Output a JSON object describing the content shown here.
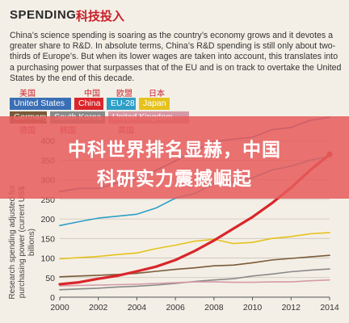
{
  "header": {
    "title_en": "SPENDING",
    "title_zh": "科技投入"
  },
  "intro": "China’s science spending is soaring as the country’s economy grows and it devotes a greater share to R&D. In absolute terms, China’s R&D spending is still only about two-thirds of Europe’s. But when its lower wages are taken into account, this translates into a purchasing power that surpasses that of the EU and is on track to overtake the United States by the end of this decade.",
  "banner": {
    "line1": "中科世界排名显赫，中国",
    "line2": "科研实力震撼崛起"
  },
  "legend": [
    {
      "zh": "美国",
      "label": "United States",
      "color": "#3a6fb5"
    },
    {
      "zh": "中国",
      "label": "China",
      "color": "#d9262b"
    },
    {
      "zh": "欧盟",
      "label": "EU-28",
      "color": "#2d9fc7"
    },
    {
      "zh": "日本",
      "label": "Japan",
      "color": "#e5c21d"
    },
    {
      "zh": "德国",
      "label": "Germany",
      "color": "#7a5a3a"
    },
    {
      "zh": "韩国",
      "label": "South Korea",
      "color": "#8a8a8a"
    },
    {
      "zh": "英国",
      "label": "United Kingdom",
      "color": "#d59aa6"
    }
  ],
  "chart_data": {
    "type": "line",
    "ylabel": "Research spending adjusted for purchasing power (current US$ billions)",
    "xlabel": "",
    "x": [
      2000,
      2001,
      2002,
      2003,
      2004,
      2005,
      2006,
      2007,
      2008,
      2009,
      2010,
      2011,
      2012,
      2013,
      2014
    ],
    "xlim": [
      2000,
      2014
    ],
    "ylim": [
      0,
      450
    ],
    "xticks": [
      "2000",
      "2002",
      "2004",
      "2006",
      "2008",
      "2010",
      "2012",
      "2014"
    ],
    "yticks": [
      "0",
      "50",
      "100",
      "150",
      "200",
      "250",
      "300",
      "350",
      "400"
    ],
    "grid": true,
    "series": [
      {
        "name": "United States",
        "color": "#3a6fb5",
        "values": [
          270,
          278,
          278,
          292,
          302,
          325,
          348,
          374,
          398,
          404,
          409,
          428,
          434,
          452,
          460
        ]
      },
      {
        "name": "EU-28",
        "color": "#2d9fc7",
        "values": [
          183,
          193,
          202,
          207,
          212,
          228,
          253,
          265,
          290,
          295,
          305,
          325,
          335,
          350,
          360
        ]
      },
      {
        "name": "China",
        "color": "#d9262b",
        "values": [
          33,
          38,
          47,
          55,
          66,
          78,
          95,
          118,
          145,
          175,
          205,
          240,
          280,
          325,
          365
        ]
      },
      {
        "name": "Japan",
        "color": "#e5c21d",
        "values": [
          98,
          101,
          104,
          109,
          113,
          124,
          133,
          143,
          148,
          137,
          140,
          150,
          155,
          162,
          165
        ]
      },
      {
        "name": "Germany",
        "color": "#7a5a3a",
        "values": [
          52,
          54,
          56,
          58,
          61,
          66,
          71,
          75,
          80,
          82,
          88,
          95,
          99,
          103,
          107
        ]
      },
      {
        "name": "South Korea",
        "color": "#8a8a8a",
        "values": [
          19,
          21,
          23,
          26,
          28,
          31,
          35,
          40,
          44,
          47,
          54,
          59,
          65,
          69,
          72
        ]
      },
      {
        "name": "United Kingdom",
        "color": "#d59aa6",
        "values": [
          29,
          30,
          31,
          32,
          33,
          35,
          37,
          39,
          39,
          38,
          38,
          39,
          39,
          42,
          44
        ]
      }
    ]
  }
}
